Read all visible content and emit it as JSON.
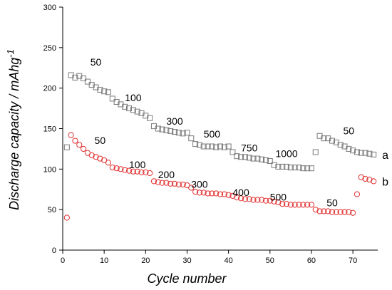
{
  "chart_data": {
    "type": "scatter",
    "title": "",
    "xlabel": "Cycle number",
    "ylabel": "Discharge capacity / mAhg",
    "ylabel_superscript": "-1",
    "xlim": [
      0,
      76
    ],
    "ylim": [
      0,
      300
    ],
    "xticks": [
      0,
      10,
      20,
      30,
      40,
      50,
      60,
      70
    ],
    "yticks": [
      0,
      50,
      100,
      150,
      200,
      250,
      300
    ],
    "grid": false,
    "legend": "none",
    "series": [
      {
        "name": "a",
        "marker": "square",
        "color": "#7a7a7a",
        "x": [
          1,
          2,
          3,
          4,
          5,
          6,
          7,
          8,
          9,
          10,
          11,
          12,
          13,
          14,
          15,
          16,
          17,
          18,
          19,
          20,
          21,
          22,
          23,
          24,
          25,
          26,
          27,
          28,
          29,
          30,
          31,
          32,
          33,
          34,
          35,
          36,
          37,
          38,
          39,
          40,
          41,
          42,
          43,
          44,
          45,
          46,
          47,
          48,
          49,
          50,
          51,
          52,
          53,
          54,
          55,
          56,
          57,
          58,
          59,
          60,
          61,
          62,
          63,
          64,
          65,
          66,
          67,
          68,
          69,
          70,
          71,
          72,
          73,
          74,
          75
        ],
        "y": [
          127,
          216,
          213,
          215,
          212,
          208,
          204,
          201,
          198,
          196,
          195,
          187,
          183,
          180,
          177,
          175,
          173,
          171,
          169,
          166,
          163,
          153,
          150,
          149,
          148,
          147,
          146,
          145,
          144,
          145,
          138,
          131,
          130,
          128,
          128,
          128,
          127,
          128,
          127,
          128,
          121,
          116,
          115,
          115,
          114,
          113,
          113,
          112,
          111,
          110,
          105,
          103,
          103,
          103,
          102,
          102,
          102,
          101,
          101,
          101,
          121,
          141,
          138,
          138,
          135,
          133,
          130,
          128,
          125,
          123,
          121,
          120,
          120,
          119,
          118
        ]
      },
      {
        "name": "b",
        "marker": "circle",
        "color": "#e03030",
        "x": [
          1,
          2,
          3,
          4,
          5,
          6,
          7,
          8,
          9,
          10,
          11,
          12,
          13,
          14,
          15,
          16,
          17,
          18,
          19,
          20,
          21,
          22,
          23,
          24,
          25,
          26,
          27,
          28,
          29,
          30,
          31,
          32,
          33,
          34,
          35,
          36,
          37,
          38,
          39,
          40,
          41,
          42,
          43,
          44,
          45,
          46,
          47,
          48,
          49,
          50,
          51,
          52,
          53,
          54,
          55,
          56,
          57,
          58,
          59,
          60,
          61,
          62,
          63,
          64,
          65,
          66,
          67,
          68,
          69,
          70,
          71,
          72,
          73,
          74,
          75
        ],
        "y": [
          40,
          142,
          135,
          130,
          125,
          120,
          117,
          115,
          113,
          111,
          108,
          102,
          101,
          100,
          99,
          98,
          97,
          97,
          96,
          96,
          95,
          85,
          84,
          83,
          83,
          82,
          82,
          81,
          81,
          80,
          77,
          72,
          71,
          71,
          70,
          70,
          70,
          69,
          69,
          68,
          67,
          65,
          64,
          63,
          63,
          62,
          62,
          62,
          61,
          61,
          60,
          59,
          57,
          57,
          56,
          56,
          56,
          56,
          56,
          56,
          50,
          48,
          48,
          48,
          47,
          47,
          47,
          47,
          47,
          46,
          69,
          90,
          88,
          87,
          85
        ]
      }
    ],
    "annotations": [
      {
        "text": "50",
        "x": 8,
        "y": 228
      },
      {
        "text": "100",
        "x": 17,
        "y": 184
      },
      {
        "text": "300",
        "x": 27,
        "y": 155
      },
      {
        "text": "500",
        "x": 36,
        "y": 139
      },
      {
        "text": "750",
        "x": 45,
        "y": 122
      },
      {
        "text": "1000",
        "x": 54,
        "y": 115
      },
      {
        "text": "50",
        "x": 69,
        "y": 143
      },
      {
        "text": "50",
        "x": 9,
        "y": 131
      },
      {
        "text": "100",
        "x": 18,
        "y": 101
      },
      {
        "text": "200",
        "x": 25,
        "y": 89
      },
      {
        "text": "300",
        "x": 33,
        "y": 77
      },
      {
        "text": "400",
        "x": 43,
        "y": 67
      },
      {
        "text": "500",
        "x": 52,
        "y": 61
      },
      {
        "text": "50",
        "x": 65,
        "y": 54
      }
    ]
  }
}
